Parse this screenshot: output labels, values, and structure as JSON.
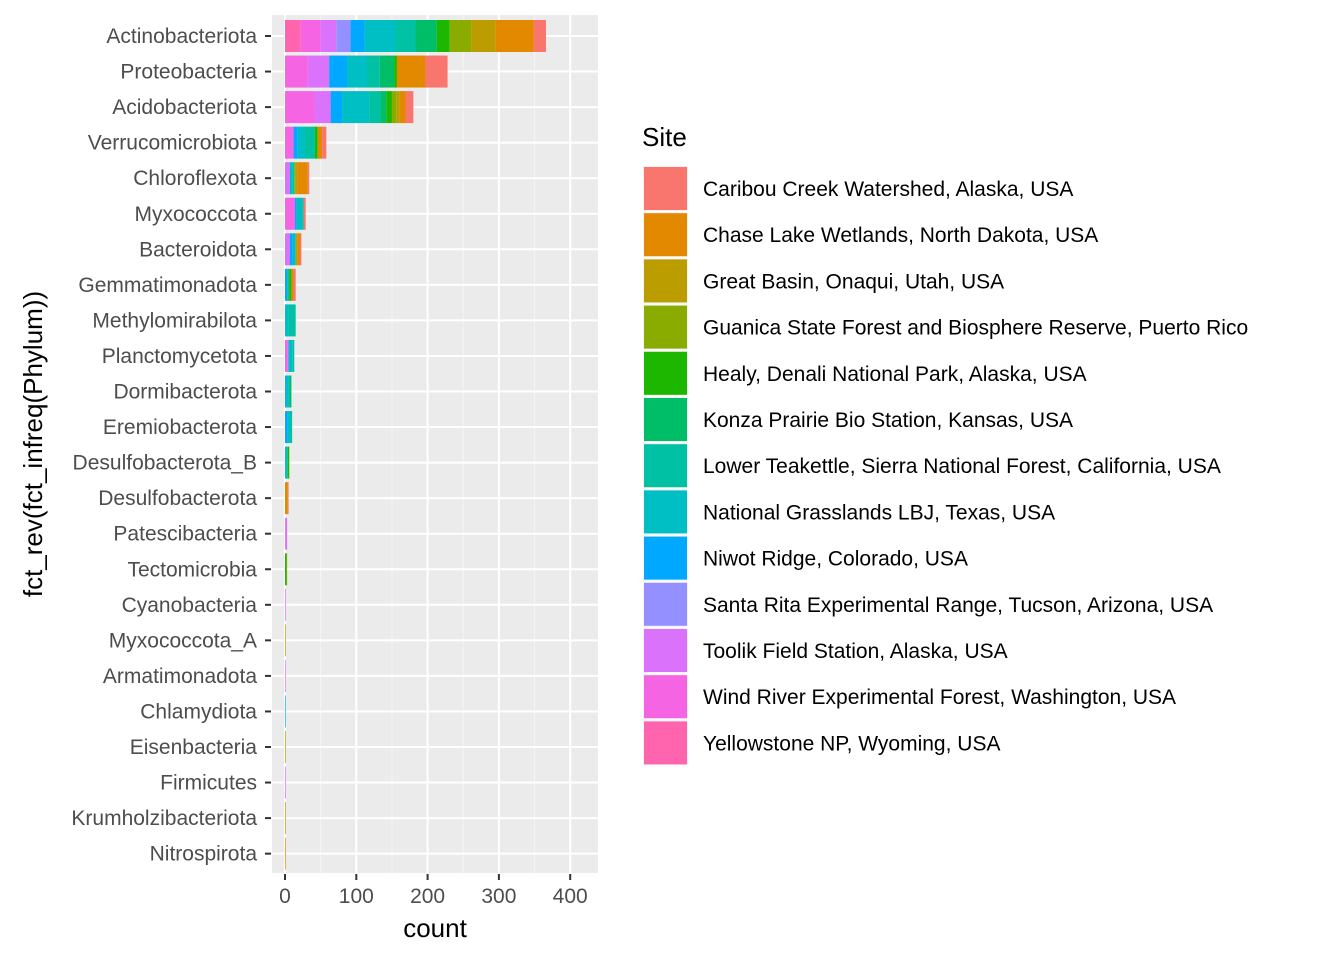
{
  "chart_data": {
    "type": "bar",
    "orientation": "horizontal",
    "stacked": true,
    "xlabel": "count",
    "ylabel": "fct_rev(fct_infreq(Phylum))",
    "xlim": [
      -18,
      438
    ],
    "xticks": [
      0,
      100,
      200,
      300,
      400
    ],
    "grid": true,
    "legend_title": "Site",
    "legend_position": "right",
    "categories": [
      "Actinobacteriota",
      "Proteobacteria",
      "Acidobacteriota",
      "Verrucomicrobiota",
      "Chloroflexota",
      "Myxococcota",
      "Bacteroidota",
      "Gemmatimonadota",
      "Methylomirabilota",
      "Planctomycetota",
      "Dormibacterota",
      "Eremiobacterota",
      "Desulfobacterota_B",
      "Desulfobacterota",
      "Patescibacteria",
      "Tectomicrobia",
      "Cyanobacteria",
      "Myxococcota_A",
      "Armatimonadota",
      "Chlamydiota",
      "Eisenbacteria",
      "Firmicutes",
      "Krumholzibacteriota",
      "Nitrospirota"
    ],
    "series": [
      {
        "name": "Yellowstone NP, Wyoming, USA",
        "color": "#FF65AE",
        "values": [
          22,
          0,
          0,
          0,
          0,
          0,
          0,
          0,
          0,
          0,
          0,
          0,
          0,
          0,
          0,
          0,
          0,
          0,
          0,
          0,
          0,
          0,
          0,
          0
        ]
      },
      {
        "name": "Wind River Experimental Forest, Washington, USA",
        "color": "#F564E3",
        "values": [
          28,
          32,
          42,
          12,
          0,
          14,
          0,
          0,
          0,
          3,
          0,
          0,
          0,
          0,
          1,
          0,
          1,
          0,
          0,
          0,
          0,
          1,
          0,
          0
        ]
      },
      {
        "name": "Toolik Field Station, Alaska, USA",
        "color": "#DB72FB",
        "values": [
          22,
          30,
          22,
          0,
          7,
          0,
          7,
          0,
          0,
          2,
          0,
          0,
          0,
          0,
          2,
          0,
          0,
          0,
          1,
          0,
          0,
          0,
          0,
          0
        ]
      },
      {
        "name": "Santa Rita Experimental Range, Tucson, Arizona, USA",
        "color": "#9590FF",
        "values": [
          20,
          0,
          0,
          0,
          0,
          0,
          0,
          0,
          0,
          0,
          0,
          0,
          0,
          0,
          0,
          0,
          0,
          0,
          0,
          0,
          0,
          0,
          0,
          0
        ]
      },
      {
        "name": "Niwot Ridge, Colorado, USA",
        "color": "#00A9FF",
        "values": [
          20,
          25,
          16,
          6,
          0,
          2,
          4,
          3,
          0,
          0,
          2,
          4,
          0,
          0,
          0,
          0,
          0,
          0,
          0,
          0,
          0,
          0,
          0,
          0
        ]
      },
      {
        "name": "National Grasslands LBJ, Texas, USA",
        "color": "#00BFC4",
        "values": [
          43,
          28,
          38,
          10,
          4,
          8,
          4,
          0,
          5,
          6,
          3,
          3,
          2,
          0,
          0,
          0,
          0,
          0,
          0,
          1,
          0,
          0,
          0,
          0
        ]
      },
      {
        "name": "Lower Teakettle, Sierra National Forest, California, USA",
        "color": "#00C1A3",
        "values": [
          28,
          18,
          16,
          14,
          2,
          2,
          0,
          3,
          10,
          2,
          2,
          3,
          2,
          0,
          0,
          0,
          0,
          0,
          0,
          0,
          0,
          0,
          0,
          0
        ]
      },
      {
        "name": "Konza Prairie Bio Station, Kansas, USA",
        "color": "#00BE67",
        "values": [
          30,
          20,
          8,
          0,
          0,
          0,
          0,
          0,
          0,
          0,
          2,
          0,
          0,
          0,
          0,
          0,
          0,
          0,
          0,
          0,
          0,
          0,
          0,
          0
        ]
      },
      {
        "name": "Healy, Denali National Park, Alaska, USA",
        "color": "#1DB700",
        "values": [
          18,
          4,
          8,
          4,
          0,
          0,
          0,
          3,
          0,
          0,
          0,
          0,
          2,
          0,
          0,
          2,
          0,
          0,
          0,
          0,
          0,
          0,
          0,
          0
        ]
      },
      {
        "name": "Guanica State Forest and Biosphere Reserve, Puerto Rico",
        "color": "#8AAB00",
        "values": [
          30,
          0,
          6,
          0,
          2,
          0,
          0,
          0,
          0,
          0,
          0,
          0,
          0,
          0,
          0,
          1,
          0,
          0,
          0,
          0,
          0,
          0,
          0,
          0
        ]
      },
      {
        "name": "Great Basin, Onaqui, Utah, USA",
        "color": "#BB9D00",
        "values": [
          34,
          0,
          5,
          0,
          2,
          0,
          2,
          0,
          0,
          0,
          0,
          0,
          0,
          0,
          0,
          0,
          0,
          1,
          0,
          0,
          1,
          0,
          1,
          0
        ]
      },
      {
        "name": "Chase Lake Wetlands, North Dakota, USA",
        "color": "#E38900",
        "values": [
          54,
          40,
          8,
          6,
          15,
          0,
          4,
          3,
          0,
          0,
          0,
          0,
          0,
          4,
          0,
          0,
          0,
          0,
          0,
          0,
          0,
          0,
          0,
          1
        ]
      },
      {
        "name": "Caribou Creek Watershed, Alaska, USA",
        "color": "#F8766D",
        "values": [
          17,
          31,
          11,
          6,
          2,
          3,
          2,
          3,
          0,
          0,
          0,
          0,
          0,
          1,
          0,
          0,
          0,
          0,
          0,
          0,
          0,
          0,
          0,
          0
        ]
      }
    ]
  }
}
